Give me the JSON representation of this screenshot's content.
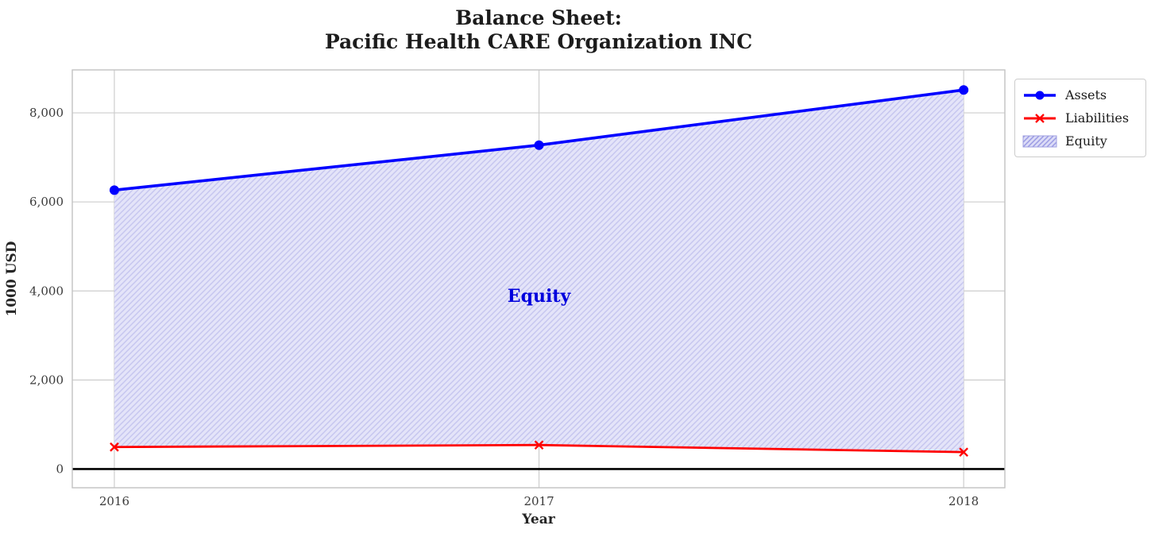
{
  "title": {
    "line1": "Balance Sheet:",
    "line2": "Pacific Health CARE Organization INC"
  },
  "chart_data": {
    "type": "line",
    "title": "Balance Sheet: Pacific Health CARE Organization INC",
    "xlabel": "Year",
    "ylabel": "1000 USD",
    "x": [
      2016,
      2017,
      2018
    ],
    "series": [
      {
        "name": "Assets",
        "color": "#0000ff",
        "marker": "circle",
        "values": [
          6265,
          7275,
          8515
        ]
      },
      {
        "name": "Liabilities",
        "color": "#ff0000",
        "marker": "x",
        "values": [
          495,
          540,
          380
        ]
      }
    ],
    "area": {
      "name": "Equity",
      "between": [
        "Assets",
        "Liabilities"
      ],
      "implied_values": [
        5770,
        6735,
        8135
      ],
      "fill_color": "#e4e4f9",
      "hatch": "//",
      "hatch_color": "#c6c6ef",
      "edge_color": "#9f9fe0"
    },
    "annotation": {
      "text": "Equity",
      "x": 2017,
      "y": 3900,
      "color": "#0000dd"
    },
    "xticks": [
      2016,
      2017,
      2018
    ],
    "yticks": [
      0,
      2000,
      4000,
      6000,
      8000
    ],
    "xlim": [
      2015.901,
      2018.097
    ],
    "ylim": [
      -420,
      8965
    ],
    "grid": true,
    "zero_line": true,
    "legend_position": "upper-right-outside",
    "grid_color": "#cdcdcd",
    "spine_color": "#c2c2c2",
    "zero_line_color": "#000000"
  }
}
